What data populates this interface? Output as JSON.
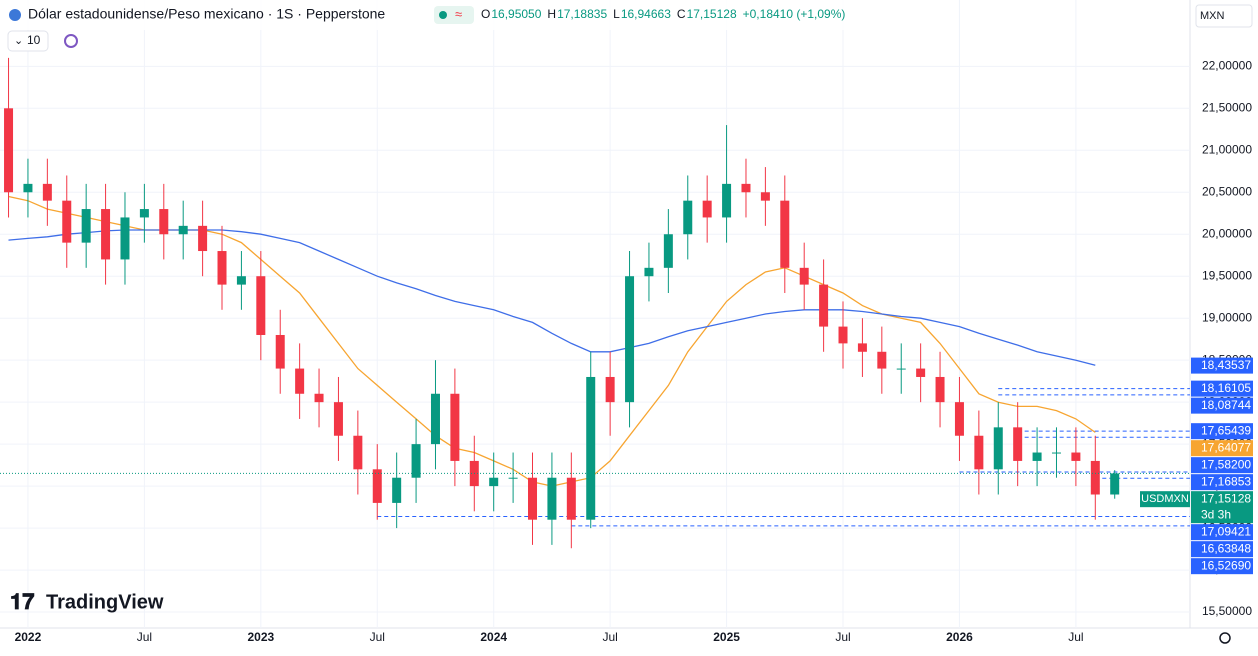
{
  "chart_data": {
    "type": "candlestick",
    "title": "Dólar estadounidense/Peso mexicano · 1S · Pepperstone",
    "ohlc_header": [
      {
        "label": "O",
        "value": "16,95050"
      },
      {
        "label": "H",
        "value": "17,18835"
      },
      {
        "label": "L",
        "value": "16,94663"
      },
      {
        "label": "C",
        "value": "17,15128"
      }
    ],
    "change": "+0,18410 (+1,09%)",
    "currency": "MXN",
    "interval_count": "10",
    "brand": "TradingView",
    "symbol": "USDMXN",
    "countdown": "3d 3h",
    "up_color": "#089981",
    "down_color": "#f23645",
    "x": [
      "2021-12",
      "2022-01",
      "2022-02",
      "2022-03",
      "2022-04",
      "2022-05",
      "2022-06",
      "2022-07",
      "2022-08",
      "2022-09",
      "2022-10",
      "2022-11",
      "2022-12",
      "2023-01",
      "2023-02",
      "2023-03",
      "2023-04",
      "2023-05",
      "2023-06",
      "2023-07",
      "2023-08",
      "2023-09",
      "2023-10",
      "2023-11",
      "2023-12",
      "2024-01",
      "2024-02",
      "2024-03",
      "2024-04",
      "2024-05",
      "2024-06",
      "2024-07",
      "2024-08",
      "2024-09",
      "2024-10",
      "2024-11",
      "2024-12",
      "2025-01",
      "2025-02",
      "2025-03",
      "2025-04",
      "2025-05",
      "2025-06",
      "2025-07",
      "2025-08",
      "2025-09",
      "2025-10",
      "2025-11",
      "2025-12",
      "2026-01",
      "2026-02",
      "2026-03",
      "2026-04",
      "2026-05",
      "2026-06",
      "2026-07",
      "2026-08",
      "2026-09"
    ],
    "open": [
      21.5,
      20.5,
      20.6,
      20.4,
      19.9,
      20.3,
      19.7,
      20.2,
      20.3,
      20.0,
      20.1,
      19.8,
      19.4,
      19.5,
      18.8,
      18.4,
      18.1,
      18.0,
      17.6,
      17.2,
      16.8,
      17.1,
      17.5,
      18.1,
      17.3,
      17.0,
      17.1,
      17.1,
      16.6,
      17.1,
      16.6,
      18.3,
      18.0,
      19.5,
      19.6,
      20.0,
      20.4,
      20.2,
      20.6,
      20.5,
      20.4,
      19.6,
      19.4,
      18.9,
      18.7,
      18.6,
      18.4,
      18.4,
      18.3,
      18.0,
      17.6,
      17.2,
      17.7,
      17.3,
      17.4,
      17.4,
      17.3,
      16.9
    ],
    "high": [
      22.1,
      20.9,
      20.9,
      20.7,
      20.6,
      20.6,
      20.5,
      20.6,
      20.6,
      20.4,
      20.4,
      20.1,
      19.8,
      19.8,
      19.1,
      18.7,
      18.4,
      18.3,
      17.9,
      17.5,
      17.4,
      17.8,
      18.5,
      18.4,
      17.6,
      17.4,
      17.4,
      17.4,
      17.4,
      17.4,
      18.6,
      18.6,
      19.8,
      19.9,
      20.3,
      20.7,
      20.7,
      21.3,
      20.9,
      20.8,
      20.7,
      19.9,
      19.7,
      19.2,
      19.0,
      18.9,
      18.7,
      18.7,
      18.6,
      18.3,
      17.9,
      18.0,
      18.0,
      17.7,
      17.7,
      17.7,
      17.6,
      17.19
    ],
    "low": [
      20.2,
      20.2,
      20.1,
      19.6,
      19.6,
      19.4,
      19.4,
      19.9,
      19.7,
      19.7,
      19.5,
      19.1,
      19.1,
      18.5,
      18.1,
      17.8,
      17.7,
      17.3,
      16.9,
      16.6,
      16.5,
      16.8,
      17.2,
      17.0,
      16.7,
      16.7,
      16.8,
      16.3,
      16.3,
      16.26,
      16.5,
      17.6,
      17.7,
      19.2,
      19.3,
      19.7,
      19.9,
      19.9,
      20.2,
      20.1,
      19.3,
      19.1,
      18.6,
      18.4,
      18.3,
      18.1,
      18.1,
      18.0,
      17.7,
      17.3,
      16.9,
      16.9,
      17.0,
      17.0,
      17.1,
      17.0,
      16.6,
      16.85
    ],
    "close": [
      20.5,
      20.6,
      20.4,
      19.9,
      20.3,
      19.7,
      20.2,
      20.3,
      20.0,
      20.1,
      19.8,
      19.4,
      19.5,
      18.8,
      18.4,
      18.1,
      18.0,
      17.6,
      17.2,
      16.8,
      17.1,
      17.5,
      18.1,
      17.3,
      17.0,
      17.1,
      17.1,
      16.6,
      17.1,
      16.6,
      18.3,
      18.0,
      19.5,
      19.6,
      20.0,
      20.4,
      20.2,
      20.6,
      20.5,
      20.4,
      19.6,
      19.4,
      18.9,
      18.7,
      18.6,
      18.4,
      18.4,
      18.3,
      18.0,
      17.6,
      17.2,
      17.7,
      17.3,
      17.4,
      17.4,
      17.3,
      16.9,
      17.15128
    ],
    "series": [
      {
        "color": "#f7a531",
        "values": [
          20.45,
          20.4,
          20.3,
          20.25,
          20.2,
          20.15,
          20.1,
          20.05,
          20.05,
          20.05,
          20.05,
          20.0,
          19.9,
          19.7,
          19.5,
          19.3,
          19.0,
          18.7,
          18.4,
          18.2,
          18.0,
          17.8,
          17.6,
          17.45,
          17.4,
          17.3,
          17.2,
          17.05,
          17.0,
          17.05,
          17.1,
          17.3,
          17.6,
          17.9,
          18.2,
          18.6,
          18.9,
          19.2,
          19.4,
          19.55,
          19.6,
          19.5,
          19.4,
          19.3,
          19.15,
          19.05,
          19.0,
          18.95,
          18.7,
          18.4,
          18.1,
          18.0,
          17.95,
          17.95,
          17.9,
          17.8,
          17.64,
          null
        ]
      },
      {
        "color": "#3f6ee8",
        "values": [
          19.93,
          19.95,
          19.97,
          20.0,
          20.02,
          20.04,
          20.05,
          20.05,
          20.05,
          20.05,
          20.05,
          20.05,
          20.03,
          20.0,
          19.95,
          19.9,
          19.8,
          19.7,
          19.6,
          19.5,
          19.42,
          19.35,
          19.27,
          19.2,
          19.15,
          19.1,
          19.02,
          18.95,
          18.82,
          18.7,
          18.6,
          18.6,
          18.65,
          18.7,
          18.78,
          18.85,
          18.9,
          18.95,
          19.0,
          19.05,
          19.08,
          19.1,
          19.1,
          19.1,
          19.08,
          19.05,
          19.02,
          19.0,
          18.95,
          18.9,
          18.82,
          18.75,
          18.68,
          18.6,
          18.55,
          18.5,
          18.44,
          null
        ]
      }
    ],
    "xlim": [
      2021.88,
      2026.99
    ],
    "xticks": [
      {
        "value": "2022-01",
        "label": "2022"
      },
      {
        "value": "2022-07",
        "label": "Jul"
      },
      {
        "value": "2023-01",
        "label": "2023"
      },
      {
        "value": "2023-07",
        "label": "Jul"
      },
      {
        "value": "2024-01",
        "label": "2024"
      },
      {
        "value": "2024-07",
        "label": "Jul"
      },
      {
        "value": "2025-01",
        "label": "2025"
      },
      {
        "value": "2025-07",
        "label": "Jul"
      },
      {
        "value": "2026-01",
        "label": "2026"
      },
      {
        "value": "2026-07",
        "label": "Jul"
      }
    ],
    "ylim": [
      15.31,
      22.79
    ],
    "yticks": [
      {
        "value": 15.5,
        "label": "15,50000"
      },
      {
        "value": 16,
        "label": "16,00000"
      },
      {
        "value": 16.5,
        "label": "16,50000"
      },
      {
        "value": 17,
        "label": "17,00000"
      },
      {
        "value": 17.5,
        "label": "17,50000"
      },
      {
        "value": 18,
        "label": "18,00000"
      },
      {
        "value": 18.5,
        "label": "18,50000"
      },
      {
        "value": 19,
        "label": "19,00000"
      },
      {
        "value": 19.5,
        "label": "19,50000"
      },
      {
        "value": 20,
        "label": "20,00000"
      },
      {
        "value": 20.5,
        "label": "20,50000"
      },
      {
        "value": 21,
        "label": "21,00000"
      },
      {
        "value": 21.5,
        "label": "21,50000"
      },
      {
        "value": 22,
        "label": "22,00000"
      }
    ],
    "grid": true,
    "price_labels": [
      {
        "value": 18.43537,
        "label": "18,43537",
        "color": "#2962ff"
      },
      {
        "value": 18.16105,
        "label": "18,16105",
        "color": "#2962ff"
      },
      {
        "value": 18.08744,
        "label": "18,08744",
        "color": "#2962ff"
      },
      {
        "value": 17.65439,
        "label": "17,65439",
        "color": "#2962ff"
      },
      {
        "value": 17.64077,
        "label": "17,64077",
        "color": "#f7a531"
      },
      {
        "value": 17.582,
        "label": "17,58200",
        "color": "#2962ff"
      },
      {
        "value": 17.16853,
        "label": "17,16853",
        "color": "#2962ff"
      },
      {
        "value": 17.15128,
        "label": "17,15128",
        "color": "#089981"
      },
      {
        "value": 17.09421,
        "label": "17,09421",
        "color": "#2962ff"
      },
      {
        "value": 16.63848,
        "label": "16,63848",
        "color": "#2962ff"
      },
      {
        "value": 16.5269,
        "label": "16,52690",
        "color": "#2962ff"
      }
    ],
    "levels": [
      {
        "value": 18.16105,
        "from": "2026-03"
      },
      {
        "value": 18.08744,
        "from": "2026-03"
      },
      {
        "value": 17.65439,
        "from": "2026-04"
      },
      {
        "value": 17.582,
        "from": "2026-04"
      },
      {
        "value": 17.16853,
        "from": "2026-01"
      },
      {
        "value": 17.09421,
        "from": "2026-08"
      },
      {
        "value": 16.63848,
        "from": "2023-07"
      },
      {
        "value": 16.5269,
        "from": "2024-05"
      }
    ]
  }
}
